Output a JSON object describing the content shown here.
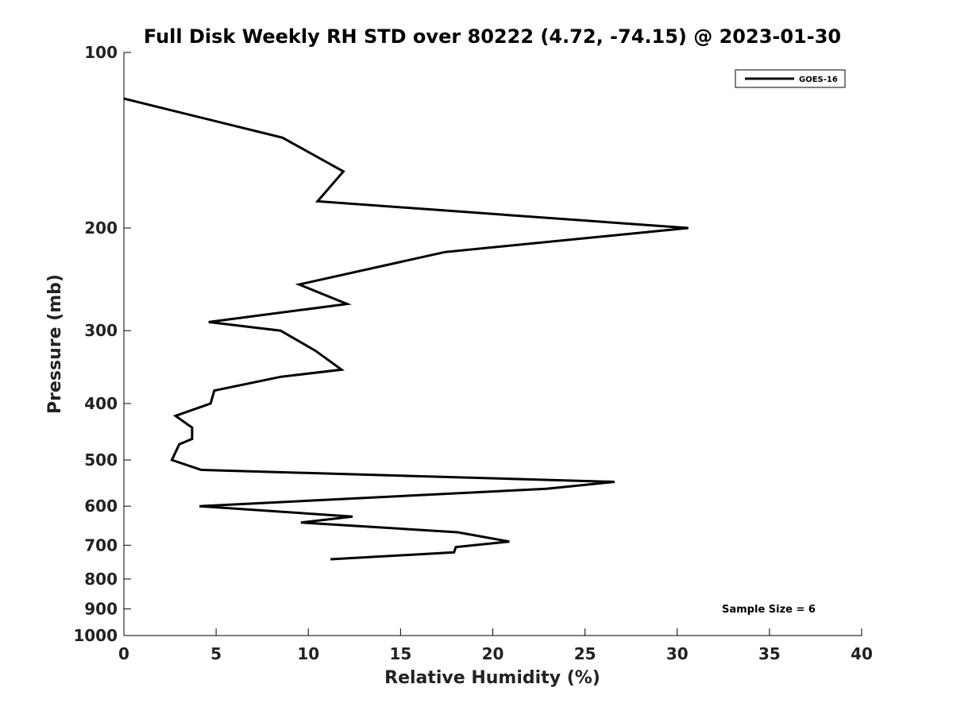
{
  "chart_data": {
    "type": "line",
    "title": "Full Disk Weekly RH STD over 80222 (4.72, -74.15) @ 2023-01-30",
    "xlabel": "Relative Humidity (%)",
    "ylabel": "Pressure (mb)",
    "xlim": [
      0,
      40
    ],
    "ylim": [
      100,
      1000
    ],
    "yscale": "log",
    "yinverted": true,
    "xticks": [
      0,
      5,
      10,
      15,
      20,
      25,
      30,
      35,
      40
    ],
    "yticks": [
      100,
      200,
      300,
      400,
      500,
      600,
      700,
      800,
      900,
      1000
    ],
    "legend": {
      "position": "top-right",
      "entries": [
        "GOES-16"
      ]
    },
    "annotation": "Sample Size = 6",
    "series": [
      {
        "name": "GOES-16",
        "color": "#000000",
        "points": [
          {
            "x": 0.0,
            "p": 120
          },
          {
            "x": 8.6,
            "p": 140
          },
          {
            "x": 11.9,
            "p": 160
          },
          {
            "x": 10.5,
            "p": 180
          },
          {
            "x": 30.6,
            "p": 200
          },
          {
            "x": 17.4,
            "p": 220
          },
          {
            "x": 9.5,
            "p": 250
          },
          {
            "x": 12.1,
            "p": 270
          },
          {
            "x": 4.6,
            "p": 290
          },
          {
            "x": 8.5,
            "p": 300
          },
          {
            "x": 10.4,
            "p": 325
          },
          {
            "x": 11.8,
            "p": 350
          },
          {
            "x": 8.5,
            "p": 360
          },
          {
            "x": 4.9,
            "p": 380
          },
          {
            "x": 4.7,
            "p": 400
          },
          {
            "x": 2.8,
            "p": 420
          },
          {
            "x": 3.7,
            "p": 440
          },
          {
            "x": 3.7,
            "p": 460
          },
          {
            "x": 3.0,
            "p": 470
          },
          {
            "x": 2.6,
            "p": 500
          },
          {
            "x": 4.2,
            "p": 520
          },
          {
            "x": 26.6,
            "p": 545
          },
          {
            "x": 22.9,
            "p": 560
          },
          {
            "x": 4.1,
            "p": 600
          },
          {
            "x": 12.4,
            "p": 625
          },
          {
            "x": 9.6,
            "p": 640
          },
          {
            "x": 18.1,
            "p": 665
          },
          {
            "x": 20.9,
            "p": 690
          },
          {
            "x": 18.0,
            "p": 705
          },
          {
            "x": 17.9,
            "p": 720
          },
          {
            "x": 11.2,
            "p": 740
          }
        ]
      }
    ]
  }
}
